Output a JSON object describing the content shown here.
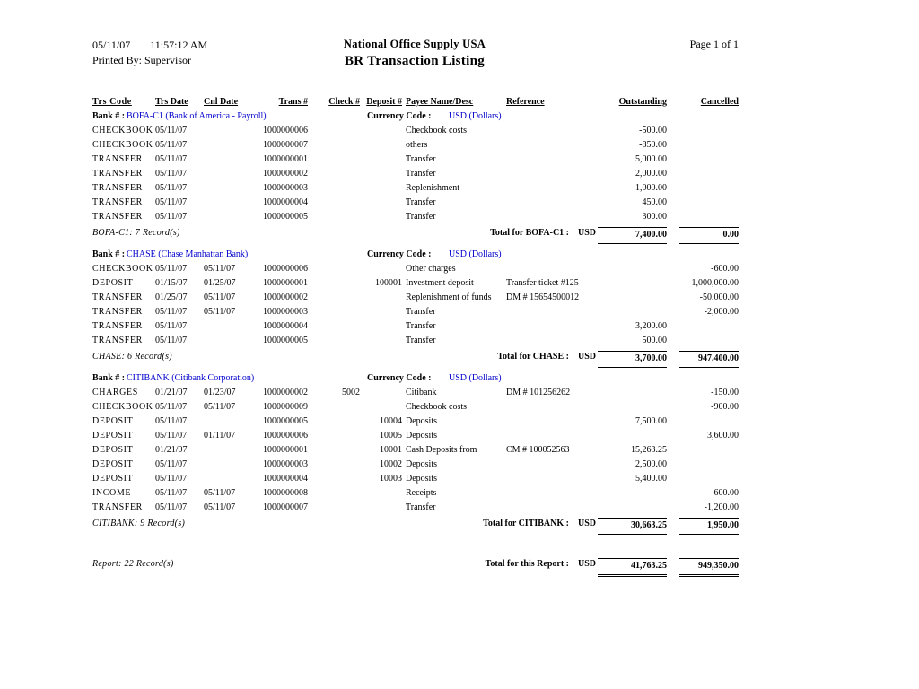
{
  "header": {
    "date": "05/11/07",
    "time": "11:57:12 AM",
    "printed_by": "Printed By: Supervisor",
    "company": "National Office Supply USA",
    "title": "BR Transaction Listing",
    "page": "Page 1 of 1"
  },
  "accent_color": "#0000cc",
  "columns": [
    "Trs Code",
    "Trs Date",
    "Cnl Date",
    "Trans #",
    "Check #",
    "Deposit #",
    "Payee Name/Desc",
    "Reference",
    "Outstanding",
    "Cancelled"
  ],
  "banks": [
    {
      "bank_label": "Bank # :",
      "bank_name": "BOFA-C1 (Bank of America - Payroll)",
      "currency_label": "Currency Code :",
      "currency": "USD (Dollars)",
      "rows": [
        {
          "code": "CHECKBOOK",
          "trs_date": "05/11/07",
          "cnl_date": "",
          "trans_no": "1000000006",
          "check_no": "",
          "deposit_no": "",
          "payee": "Checkbook costs",
          "reference": "",
          "outstanding": "-500.00",
          "cancelled": ""
        },
        {
          "code": "CHECKBOOK",
          "trs_date": "05/11/07",
          "cnl_date": "",
          "trans_no": "1000000007",
          "check_no": "",
          "deposit_no": "",
          "payee": "others",
          "reference": "",
          "outstanding": "-850.00",
          "cancelled": ""
        },
        {
          "code": "TRANSFER",
          "trs_date": "05/11/07",
          "cnl_date": "",
          "trans_no": "1000000001",
          "check_no": "",
          "deposit_no": "",
          "payee": "Transfer",
          "reference": "",
          "outstanding": "5,000.00",
          "cancelled": ""
        },
        {
          "code": "TRANSFER",
          "trs_date": "05/11/07",
          "cnl_date": "",
          "trans_no": "1000000002",
          "check_no": "",
          "deposit_no": "",
          "payee": "Transfer",
          "reference": "",
          "outstanding": "2,000.00",
          "cancelled": ""
        },
        {
          "code": "TRANSFER",
          "trs_date": "05/11/07",
          "cnl_date": "",
          "trans_no": "1000000003",
          "check_no": "",
          "deposit_no": "",
          "payee": "Replenishment",
          "reference": "",
          "outstanding": "1,000.00",
          "cancelled": ""
        },
        {
          "code": "TRANSFER",
          "trs_date": "05/11/07",
          "cnl_date": "",
          "trans_no": "1000000004",
          "check_no": "",
          "deposit_no": "",
          "payee": "Transfer",
          "reference": "",
          "outstanding": "450.00",
          "cancelled": ""
        },
        {
          "code": "TRANSFER",
          "trs_date": "05/11/07",
          "cnl_date": "",
          "trans_no": "1000000005",
          "check_no": "",
          "deposit_no": "",
          "payee": "Transfer",
          "reference": "",
          "outstanding": "300.00",
          "cancelled": ""
        }
      ],
      "summary": "BOFA-C1: 7 Record(s)",
      "total_label": "Total for BOFA-C1 :",
      "total_currency": "USD",
      "total_outstanding": "7,400.00",
      "total_cancelled": "0.00"
    },
    {
      "bank_label": "Bank # :",
      "bank_name": "CHASE (Chase Manhattan Bank)",
      "currency_label": "Currency Code :",
      "currency": "USD (Dollars)",
      "rows": [
        {
          "code": "CHECKBOOK",
          "trs_date": "05/11/07",
          "cnl_date": "05/11/07",
          "trans_no": "1000000006",
          "check_no": "",
          "deposit_no": "",
          "payee": "Other charges",
          "reference": "",
          "outstanding": "",
          "cancelled": "-600.00"
        },
        {
          "code": "DEPOSIT",
          "trs_date": "01/15/07",
          "cnl_date": "01/25/07",
          "trans_no": "1000000001",
          "check_no": "",
          "deposit_no": "100001",
          "payee": "Investment deposit",
          "reference": "Transfer ticket #125",
          "outstanding": "",
          "cancelled": "1,000,000.00"
        },
        {
          "code": "TRANSFER",
          "trs_date": "01/25/07",
          "cnl_date": "05/11/07",
          "trans_no": "1000000002",
          "check_no": "",
          "deposit_no": "",
          "payee": "Replenishment of funds",
          "reference": "DM # 15654500012",
          "outstanding": "",
          "cancelled": "-50,000.00"
        },
        {
          "code": "TRANSFER",
          "trs_date": "05/11/07",
          "cnl_date": "05/11/07",
          "trans_no": "1000000003",
          "check_no": "",
          "deposit_no": "",
          "payee": "Transfer",
          "reference": "",
          "outstanding": "",
          "cancelled": "-2,000.00"
        },
        {
          "code": "TRANSFER",
          "trs_date": "05/11/07",
          "cnl_date": "",
          "trans_no": "1000000004",
          "check_no": "",
          "deposit_no": "",
          "payee": "Transfer",
          "reference": "",
          "outstanding": "3,200.00",
          "cancelled": ""
        },
        {
          "code": "TRANSFER",
          "trs_date": "05/11/07",
          "cnl_date": "",
          "trans_no": "1000000005",
          "check_no": "",
          "deposit_no": "",
          "payee": "Transfer",
          "reference": "",
          "outstanding": "500.00",
          "cancelled": ""
        }
      ],
      "summary": "CHASE: 6 Record(s)",
      "total_label": "Total for CHASE :",
      "total_currency": "USD",
      "total_outstanding": "3,700.00",
      "total_cancelled": "947,400.00"
    },
    {
      "bank_label": "Bank # :",
      "bank_name": "CITIBANK (Citibank Corporation)",
      "currency_label": "Currency Code :",
      "currency": "USD (Dollars)",
      "rows": [
        {
          "code": "CHARGES",
          "trs_date": "01/21/07",
          "cnl_date": "01/23/07",
          "trans_no": "1000000002",
          "check_no": "5002",
          "deposit_no": "",
          "payee": "Citibank",
          "reference": "DM # 101256262",
          "outstanding": "",
          "cancelled": "-150.00"
        },
        {
          "code": "CHECKBOOK",
          "trs_date": "05/11/07",
          "cnl_date": "05/11/07",
          "trans_no": "1000000009",
          "check_no": "",
          "deposit_no": "",
          "payee": "Checkbook costs",
          "reference": "",
          "outstanding": "",
          "cancelled": "-900.00"
        },
        {
          "code": "DEPOSIT",
          "trs_date": "05/11/07",
          "cnl_date": "",
          "trans_no": "1000000005",
          "check_no": "",
          "deposit_no": "10004",
          "payee": "Deposits",
          "reference": "",
          "outstanding": "7,500.00",
          "cancelled": ""
        },
        {
          "code": "DEPOSIT",
          "trs_date": "05/11/07",
          "cnl_date": "01/11/07",
          "trans_no": "1000000006",
          "check_no": "",
          "deposit_no": "10005",
          "payee": "Deposits",
          "reference": "",
          "outstanding": "",
          "cancelled": "3,600.00"
        },
        {
          "code": "DEPOSIT",
          "trs_date": "01/21/07",
          "cnl_date": "",
          "trans_no": "1000000001",
          "check_no": "",
          "deposit_no": "10001",
          "payee": "Cash Deposits from",
          "reference": "CM # 100052563",
          "outstanding": "15,263.25",
          "cancelled": ""
        },
        {
          "code": "DEPOSIT",
          "trs_date": "05/11/07",
          "cnl_date": "",
          "trans_no": "1000000003",
          "check_no": "",
          "deposit_no": "10002",
          "payee": "Deposits",
          "reference": "",
          "outstanding": "2,500.00",
          "cancelled": ""
        },
        {
          "code": "DEPOSIT",
          "trs_date": "05/11/07",
          "cnl_date": "",
          "trans_no": "1000000004",
          "check_no": "",
          "deposit_no": "10003",
          "payee": "Deposits",
          "reference": "",
          "outstanding": "5,400.00",
          "cancelled": ""
        },
        {
          "code": "INCOME",
          "trs_date": "05/11/07",
          "cnl_date": "05/11/07",
          "trans_no": "1000000008",
          "check_no": "",
          "deposit_no": "",
          "payee": "Receipts",
          "reference": "",
          "outstanding": "",
          "cancelled": "600.00"
        },
        {
          "code": "TRANSFER",
          "trs_date": "05/11/07",
          "cnl_date": "05/11/07",
          "trans_no": "1000000007",
          "check_no": "",
          "deposit_no": "",
          "payee": "Transfer",
          "reference": "",
          "outstanding": "",
          "cancelled": "-1,200.00"
        }
      ],
      "summary": "CITIBANK: 9 Record(s)",
      "total_label": "Total for CITIBANK :",
      "total_currency": "USD",
      "total_outstanding": "30,663.25",
      "total_cancelled": "1,950.00"
    }
  ],
  "report_total": {
    "summary": "Report: 22 Record(s)",
    "label": "Total for this Report :",
    "currency": "USD",
    "outstanding": "41,763.25",
    "cancelled": "949,350.00"
  }
}
